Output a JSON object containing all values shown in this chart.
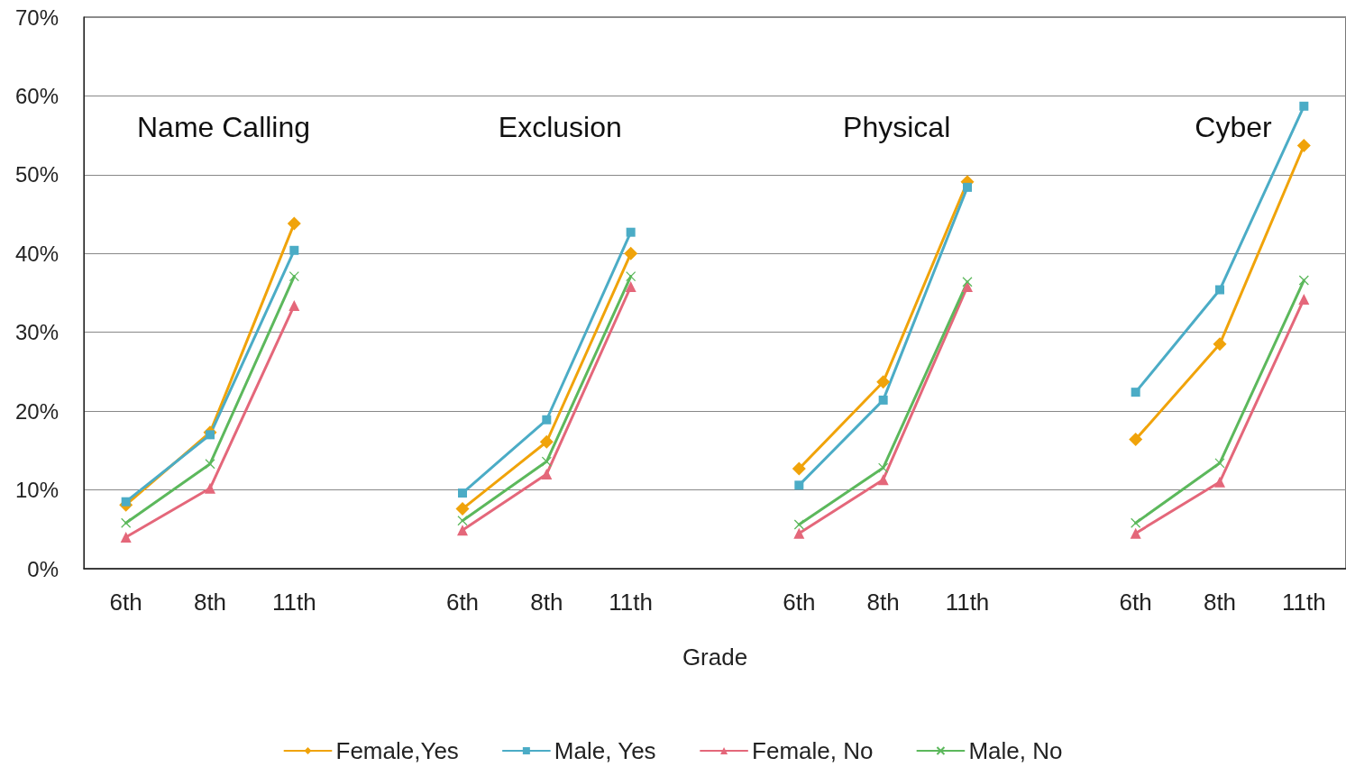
{
  "chart_data": {
    "type": "line",
    "xlabel": "Grade",
    "categories": [
      "6th",
      "8th",
      "11th",
      null,
      "6th",
      "8th",
      "11th",
      null,
      "6th",
      "8th",
      "11th",
      null,
      "6th",
      "8th",
      "11th"
    ],
    "series": [
      {
        "name": "Female,Yes",
        "color": "#f0a30a",
        "marker": "diamond",
        "values": [
          8.1,
          17.3,
          43.8,
          null,
          7.6,
          16.1,
          40.0,
          null,
          12.7,
          23.7,
          49.1,
          null,
          16.4,
          28.5,
          53.7
        ]
      },
      {
        "name": "Male, Yes",
        "color": "#4bacc6",
        "marker": "square",
        "values": [
          8.5,
          17.0,
          40.4,
          null,
          9.6,
          18.9,
          42.7,
          null,
          10.6,
          21.4,
          48.4,
          null,
          22.4,
          35.4,
          58.7
        ]
      },
      {
        "name": "Female, No",
        "color": "#e4677a",
        "marker": "triangle",
        "values": [
          4.0,
          10.2,
          33.4,
          null,
          4.9,
          12.0,
          35.8,
          null,
          4.5,
          11.3,
          35.8,
          null,
          4.5,
          11.0,
          34.2
        ]
      },
      {
        "name": "Male, No",
        "color": "#5cb85c",
        "marker": "cross",
        "values": [
          5.8,
          13.3,
          37.1,
          null,
          6.1,
          13.6,
          37.1,
          null,
          5.6,
          12.8,
          36.4,
          null,
          5.8,
          13.4,
          36.6
        ]
      }
    ],
    "annotations": [
      "Name Calling",
      "Exclusion",
      "Physical",
      "Cyber"
    ],
    "ylim": [
      0,
      70
    ],
    "yticks": [
      {
        "value": 0,
        "label": "0%"
      },
      {
        "value": 10,
        "label": "10%"
      },
      {
        "value": 20,
        "label": "20%"
      },
      {
        "value": 30,
        "label": "30%"
      },
      {
        "value": 40,
        "label": "40%"
      },
      {
        "value": 50,
        "label": "50%"
      },
      {
        "value": 60,
        "label": "60%"
      },
      {
        "value": 70,
        "label": "70%"
      }
    ],
    "grid": "y",
    "legend": "bottom",
    "line_style": "solid"
  }
}
